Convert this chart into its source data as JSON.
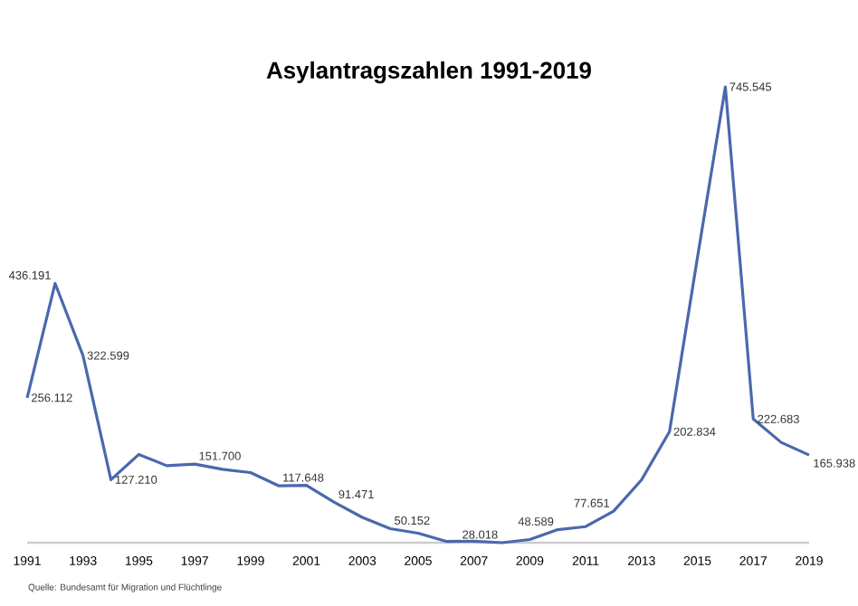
{
  "chart_data": {
    "type": "line",
    "title": "Asylantragszahlen 1991-2019",
    "x": [
      1991,
      1992,
      1993,
      1994,
      1995,
      1996,
      1997,
      1998,
      1999,
      2000,
      2001,
      2002,
      2003,
      2004,
      2005,
      2006,
      2007,
      2008,
      2009,
      2010,
      2011,
      2012,
      2013,
      2014,
      2015,
      2016,
      2017,
      2018,
      2019
    ],
    "values": [
      256112,
      436191,
      322599,
      127210,
      166951,
      149193,
      151700,
      143429,
      138319,
      117648,
      118306,
      91471,
      67848,
      50152,
      42908,
      30100,
      30303,
      28018,
      33033,
      48589,
      53347,
      77651,
      127023,
      202834,
      476649,
      745545,
      222683,
      185853,
      165938
    ],
    "value_labels": [
      "256.112",
      "436.191",
      "322.599",
      "127.210",
      null,
      null,
      "151.700",
      null,
      null,
      "117.648",
      null,
      "91.471",
      null,
      "50.152",
      null,
      null,
      null,
      "28.018",
      null,
      "48.589",
      null,
      "77.651",
      null,
      "202.834",
      null,
      "745.545",
      "222.683",
      null,
      "165.938"
    ],
    "color": "#4a68ad",
    "xlim": [
      1991,
      2019
    ],
    "xticks": [
      1991,
      1993,
      1995,
      1997,
      1999,
      2001,
      2003,
      2005,
      2007,
      2009,
      2011,
      2013,
      2015,
      2017,
      2019
    ],
    "annotations": [
      "Quelle: Bundesamt für Migration und Flüchtlinge"
    ]
  }
}
